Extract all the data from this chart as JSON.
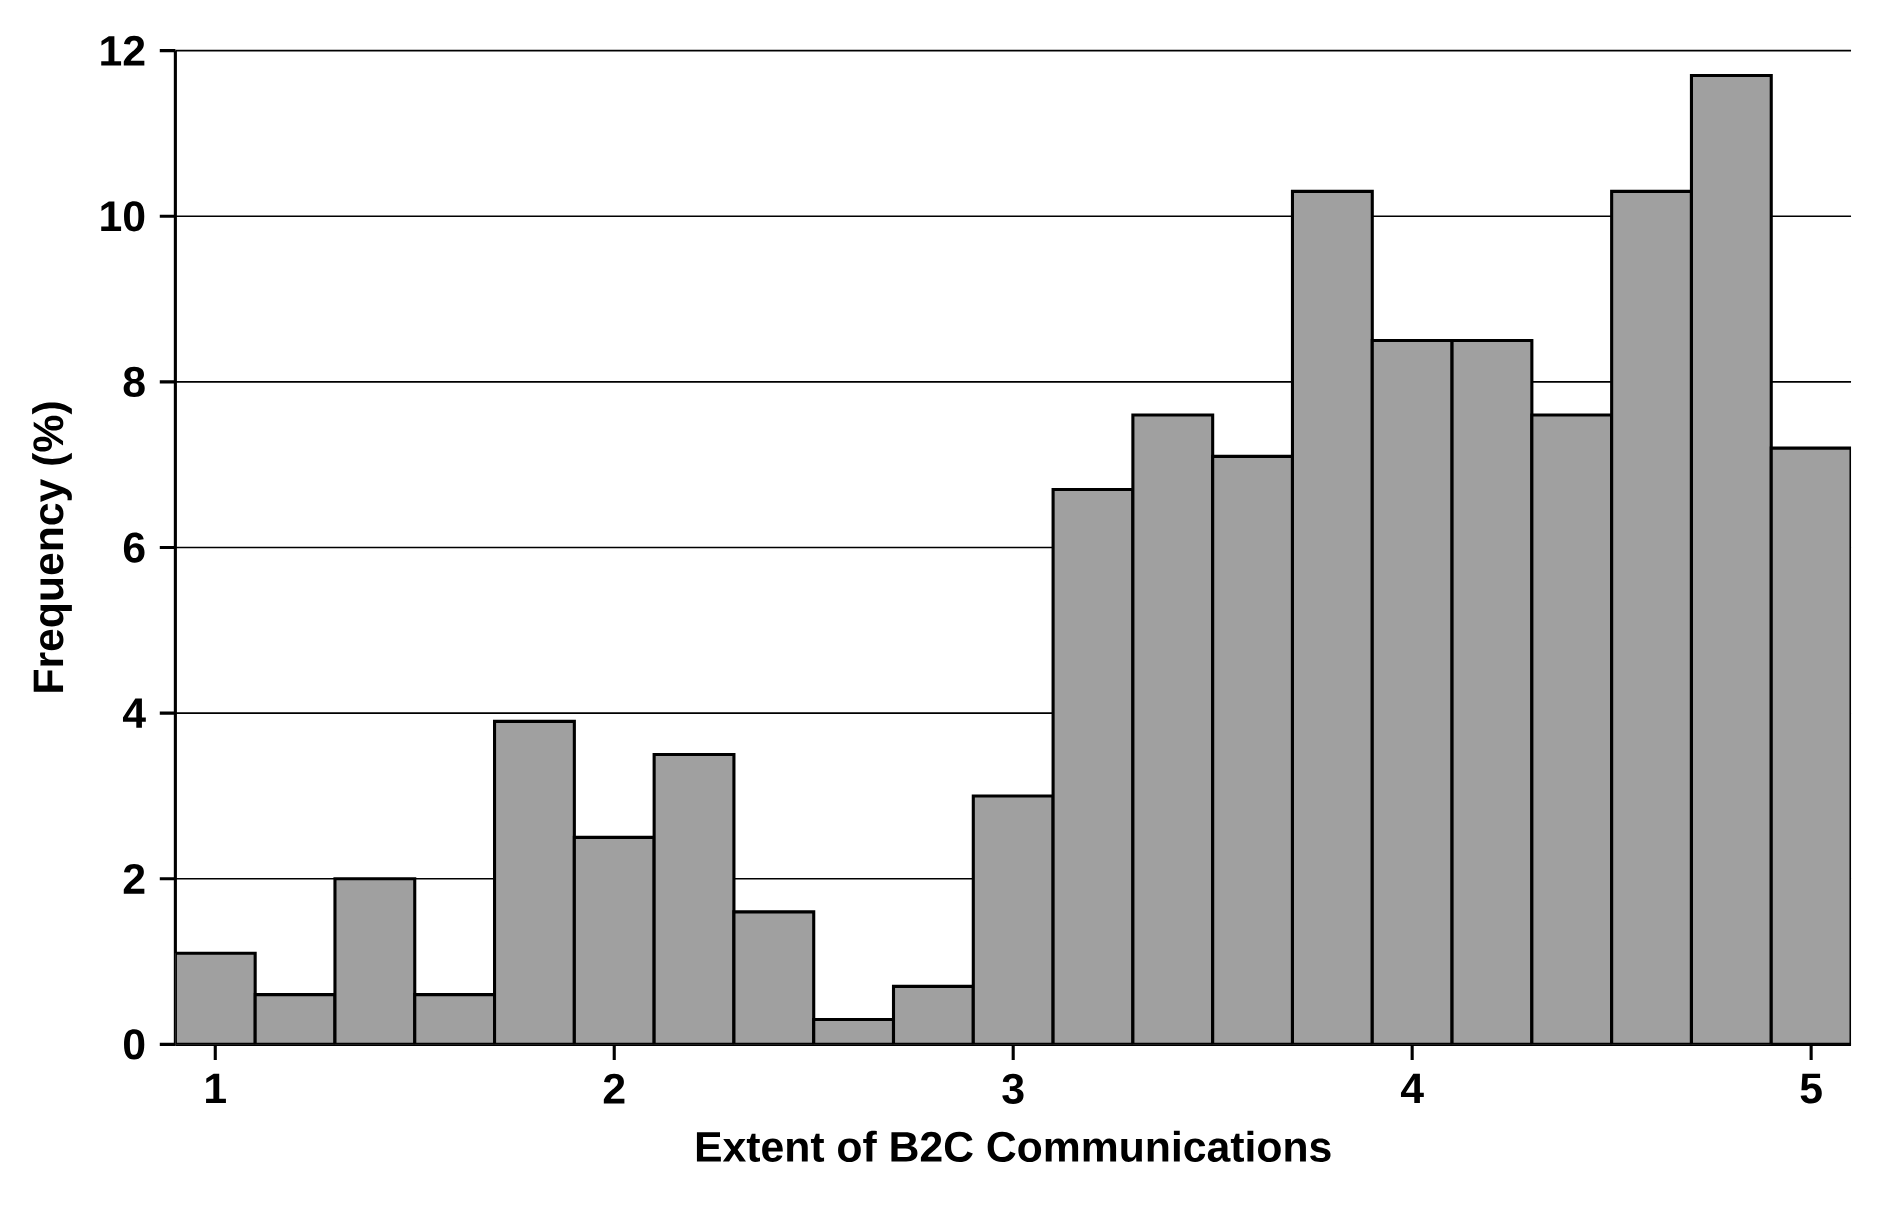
{
  "chart_data": {
    "type": "histogram",
    "xlabel": "Extent of B2C Communications",
    "ylabel": "Frequency (%)",
    "bins": [
      0.9,
      1.1,
      1.3,
      1.5,
      1.7,
      1.9,
      2.1,
      2.3,
      2.5,
      2.7,
      2.9,
      3.1,
      3.3,
      3.5,
      3.7,
      3.9,
      4.1,
      4.3,
      4.5,
      4.7,
      4.9,
      5.1
    ],
    "values": [
      1.1,
      0.6,
      2.0,
      0.6,
      3.9,
      2.5,
      3.5,
      1.6,
      0.3,
      0.7,
      3.0,
      6.7,
      7.6,
      7.1,
      10.3,
      8.5,
      8.5,
      7.6,
      10.3,
      11.7,
      7.2
    ],
    "color": "#a0a0a0",
    "xlim": [
      0.9,
      5.1
    ],
    "ylim": [
      0,
      12
    ],
    "xticks": [
      1,
      2,
      3,
      4,
      5
    ],
    "yticks": [
      0,
      2,
      4,
      6,
      8,
      10,
      12
    ],
    "grid": "y"
  }
}
